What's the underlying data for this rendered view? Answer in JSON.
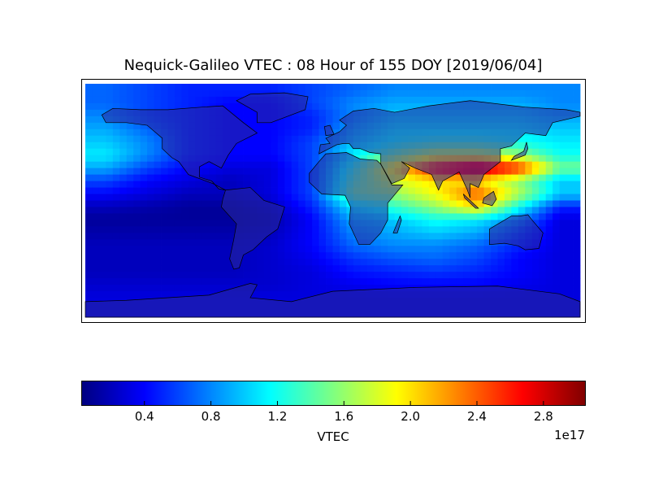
{
  "chart_data": {
    "type": "heatmap",
    "title": "Nequick-Galileo VTEC : 08 Hour of 155 DOY [2019/06/04]",
    "projection": "equirectangular world map with coastlines and country borders",
    "x_range_lon": [
      -180,
      180
    ],
    "y_range_lat": [
      -90,
      90
    ],
    "grid_resolution_deg": 5,
    "sample_lons": [
      -165,
      -135,
      -105,
      -75,
      -45,
      -15,
      15,
      45,
      75,
      105,
      135,
      165
    ],
    "sample_lats": [
      85,
      75,
      65,
      55,
      45,
      35,
      25,
      15,
      5,
      -5,
      -15,
      -25,
      -35,
      -45,
      -55,
      -65,
      -75,
      -85
    ],
    "values_1e17": [
      [
        0.7,
        0.6,
        0.5,
        0.5,
        0.5,
        0.6,
        0.7,
        0.8,
        0.8,
        0.8,
        0.8,
        0.8
      ],
      [
        0.7,
        0.6,
        0.5,
        0.4,
        0.4,
        0.6,
        0.8,
        0.9,
        0.9,
        0.9,
        0.9,
        0.8
      ],
      [
        0.8,
        0.6,
        0.5,
        0.4,
        0.4,
        0.5,
        0.8,
        1.0,
        1.0,
        1.0,
        1.0,
        0.9
      ],
      [
        0.9,
        0.7,
        0.5,
        0.4,
        0.4,
        0.5,
        0.9,
        1.1,
        1.1,
        1.1,
        1.1,
        1.0
      ],
      [
        1.0,
        0.8,
        0.5,
        0.4,
        0.4,
        0.6,
        1.0,
        1.2,
        1.3,
        1.3,
        1.2,
        1.1
      ],
      [
        1.1,
        0.8,
        0.5,
        0.4,
        0.4,
        0.6,
        1.1,
        1.5,
        1.8,
        1.8,
        1.6,
        1.2
      ],
      [
        0.9,
        0.6,
        0.4,
        0.3,
        0.3,
        0.6,
        1.3,
        2.0,
        2.7,
        3.0,
        2.6,
        1.5
      ],
      [
        0.6,
        0.4,
        0.3,
        0.2,
        0.3,
        0.6,
        1.4,
        1.8,
        2.0,
        2.0,
        1.6,
        1.0
      ],
      [
        0.4,
        0.3,
        0.2,
        0.2,
        0.3,
        0.6,
        1.5,
        1.6,
        1.9,
        2.4,
        1.7,
        1.0
      ],
      [
        0.2,
        0.15,
        0.1,
        0.1,
        0.2,
        0.5,
        1.1,
        1.3,
        1.6,
        2.0,
        1.2,
        0.5
      ],
      [
        0.1,
        0.1,
        0.1,
        0.1,
        0.15,
        0.4,
        0.9,
        1.0,
        1.2,
        1.1,
        0.8,
        0.3
      ],
      [
        0.15,
        0.15,
        0.15,
        0.15,
        0.2,
        0.4,
        0.8,
        0.9,
        1.0,
        0.9,
        0.6,
        0.3
      ],
      [
        0.2,
        0.2,
        0.2,
        0.2,
        0.25,
        0.4,
        0.7,
        0.8,
        0.8,
        0.7,
        0.5,
        0.3
      ],
      [
        0.2,
        0.2,
        0.2,
        0.2,
        0.25,
        0.35,
        0.55,
        0.65,
        0.7,
        0.6,
        0.4,
        0.3
      ],
      [
        0.2,
        0.2,
        0.2,
        0.2,
        0.25,
        0.3,
        0.45,
        0.5,
        0.55,
        0.5,
        0.4,
        0.3
      ],
      [
        0.25,
        0.25,
        0.25,
        0.25,
        0.25,
        0.3,
        0.35,
        0.4,
        0.4,
        0.4,
        0.35,
        0.3
      ],
      [
        0.3,
        0.3,
        0.3,
        0.3,
        0.3,
        0.3,
        0.3,
        0.3,
        0.3,
        0.3,
        0.3,
        0.3
      ],
      [
        0.3,
        0.3,
        0.3,
        0.3,
        0.3,
        0.3,
        0.3,
        0.3,
        0.3,
        0.3,
        0.3,
        0.3
      ]
    ],
    "colormap": "jet",
    "colorbar": {
      "label": "VTEC",
      "range": [
        0.02,
        3.05
      ],
      "ticks": [
        0.4,
        0.8,
        1.2,
        1.6,
        2.0,
        2.4,
        2.8
      ],
      "tick_labels": [
        "0.4",
        "0.8",
        "1.2",
        "1.6",
        "2.0",
        "2.4",
        "2.8"
      ],
      "offset_text": "1e17",
      "orientation": "horizontal",
      "placement": "bottom"
    },
    "land_overlay_color": "#2a2a9a"
  }
}
